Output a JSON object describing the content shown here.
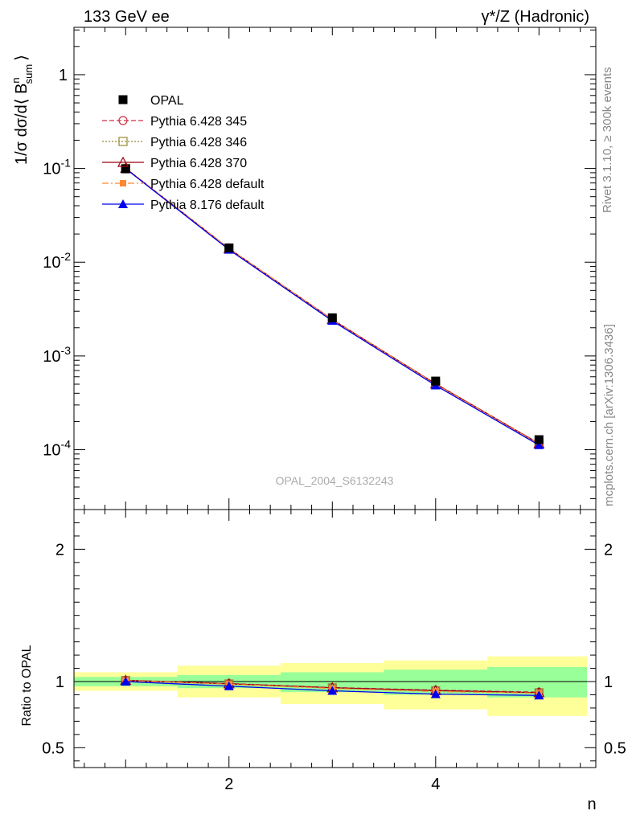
{
  "title_left": "133 GeV ee",
  "title_right": "γ*/Z (Hadronic)",
  "side_label_top": "Rivet 3.1.10, ≥ 300k events",
  "side_label_bottom": "mcplots.cern.ch [arXiv:1306.3436]",
  "watermark": "OPAL_2004_S6132243",
  "ylabel_top": "1/σ dσ/d⟨ B",
  "ylabel_sup": "n",
  "ylabel_sub": "sum",
  "ylabel_close": "⟩",
  "ylabel_bottom": "Ratio to OPAL",
  "xlabel": "n",
  "colors": {
    "band_yellow": "#ffff99",
    "band_green": "#99ff99",
    "data": "#000000",
    "py345": "#cc3344",
    "py346": "#998833",
    "py370": "#990011",
    "pydef": "#ff8833",
    "py8": "#0000ee"
  },
  "legend": [
    {
      "label": "OPAL"
    },
    {
      "label": "Pythia 6.428 345"
    },
    {
      "label": "Pythia 6.428 346"
    },
    {
      "label": "Pythia 6.428 370"
    },
    {
      "label": "Pythia 6.428 default"
    },
    {
      "label": "Pythia 8.176 default"
    }
  ],
  "chart_data": [
    {
      "type": "line",
      "panel": "main",
      "xlim": [
        0.5,
        5.55
      ],
      "ylim": [
        2.3e-05,
        3.2
      ],
      "yscale": "log",
      "xticks": [
        2,
        4
      ],
      "yticks": [
        {
          "mant": "10",
          "exp": "-4"
        },
        {
          "mant": "10",
          "exp": "-3"
        },
        {
          "mant": "10",
          "exp": "-2"
        },
        {
          "mant": "10",
          "exp": "-1"
        },
        {
          "mant": "1",
          "exp": ""
        }
      ],
      "x": [
        1,
        2,
        3,
        4,
        5
      ],
      "data": {
        "name": "OPAL",
        "values": [
          0.099,
          0.0142,
          0.00255,
          0.00054,
          0.000128
        ]
      },
      "series": [
        {
          "name": "Pythia 6.428 345",
          "values": [
            0.1005,
            0.014,
            0.00245,
            0.000505,
            0.000117
          ]
        },
        {
          "name": "Pythia 6.428 346",
          "values": [
            0.1003,
            0.014,
            0.00244,
            0.000503,
            0.000116
          ]
        },
        {
          "name": "Pythia 6.428 370",
          "values": [
            0.1004,
            0.0139,
            0.00244,
            0.000504,
            0.000116
          ]
        },
        {
          "name": "Pythia 6.428 default",
          "values": [
            0.1002,
            0.014,
            0.00243,
            0.0005,
            0.000115
          ]
        },
        {
          "name": "Pythia 8.176 default",
          "values": [
            0.0995,
            0.0136,
            0.00237,
            0.000485,
            0.000112
          ]
        }
      ]
    },
    {
      "type": "line",
      "panel": "ratio",
      "xlim": [
        0.5,
        5.55
      ],
      "ylim": [
        0.35,
        2.3
      ],
      "xticks": [
        2,
        4
      ],
      "yticks": [
        0.5,
        1,
        2
      ],
      "bins": [
        [
          0.5,
          1.5
        ],
        [
          1.5,
          2.5
        ],
        [
          2.5,
          3.5
        ],
        [
          3.5,
          4.5
        ],
        [
          4.5,
          5.5
        ]
      ],
      "band_yellow": [
        [
          0.93,
          1.07
        ],
        [
          0.88,
          1.12
        ],
        [
          0.83,
          1.14
        ],
        [
          0.79,
          1.16
        ],
        [
          0.74,
          1.19
        ]
      ],
      "band_green": [
        [
          0.965,
          1.035
        ],
        [
          0.95,
          1.05
        ],
        [
          0.92,
          1.07
        ],
        [
          0.9,
          1.09
        ],
        [
          0.88,
          1.11
        ]
      ],
      "x": [
        1,
        2,
        3,
        4,
        5
      ],
      "series": [
        {
          "name": "Pythia 6.428 345",
          "values": [
            1.01,
            0.985,
            0.955,
            0.935,
            0.92
          ]
        },
        {
          "name": "Pythia 6.428 346",
          "values": [
            1.008,
            0.982,
            0.952,
            0.93,
            0.915
          ]
        },
        {
          "name": "Pythia 6.428 370",
          "values": [
            1.009,
            0.983,
            0.953,
            0.932,
            0.916
          ]
        },
        {
          "name": "Pythia 6.428 default",
          "values": [
            1.007,
            0.98,
            0.948,
            0.925,
            0.912
          ]
        },
        {
          "name": "Pythia 8.176 default",
          "values": [
            1.0,
            0.965,
            0.93,
            0.905,
            0.895
          ]
        }
      ]
    }
  ]
}
